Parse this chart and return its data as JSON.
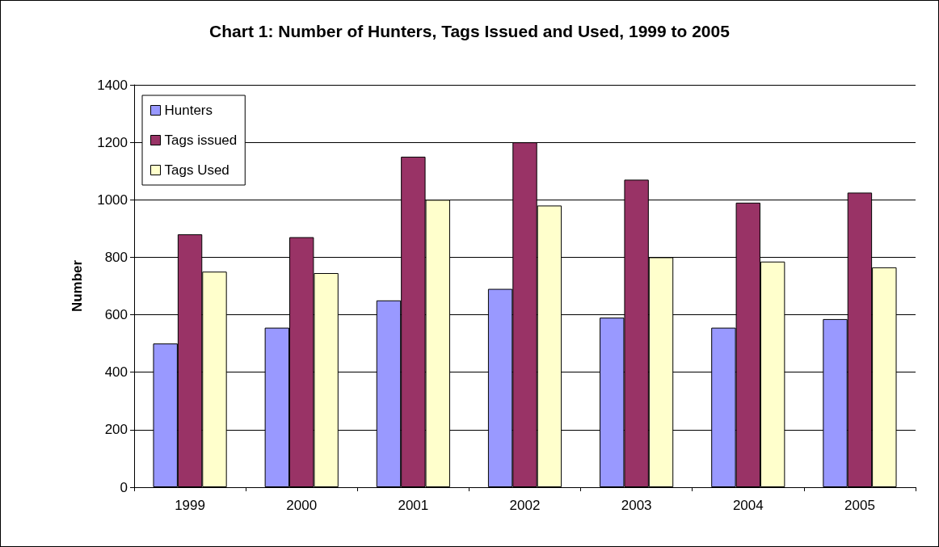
{
  "chart_data": {
    "type": "bar",
    "title": "Chart 1: Number of Hunters, Tags Issued and Used, 1999 to 2005",
    "ylabel": "Number",
    "categories": [
      "1999",
      "2000",
      "2001",
      "2002",
      "2003",
      "2004",
      "2005"
    ],
    "series": [
      {
        "name": "Hunters",
        "color": "#9999ff",
        "values": [
          500,
          555,
          650,
          690,
          590,
          555,
          585
        ]
      },
      {
        "name": "Tags issued",
        "color": "#993366",
        "values": [
          880,
          870,
          1150,
          1200,
          1070,
          990,
          1025
        ]
      },
      {
        "name": "Tags Used",
        "color": "#ffffcc",
        "values": [
          750,
          745,
          1000,
          980,
          800,
          785,
          765
        ]
      }
    ],
    "ylim": [
      0,
      1400
    ],
    "yticks": [
      0,
      200,
      400,
      600,
      800,
      1000,
      1200,
      1400
    ],
    "grid": "y",
    "legend": "top left"
  }
}
